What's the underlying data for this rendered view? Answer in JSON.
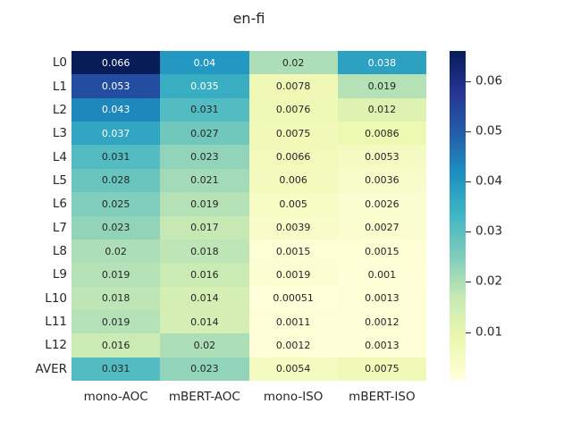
{
  "chart_data": {
    "type": "heatmap",
    "title": "en-fi",
    "rows": [
      "L0",
      "L1",
      "L2",
      "L3",
      "L4",
      "L5",
      "L6",
      "L7",
      "L8",
      "L9",
      "L10",
      "L11",
      "L12",
      "AVER"
    ],
    "columns": [
      "mono-AOC",
      "mBERT-AOC",
      "mono-ISO",
      "mBERT-ISO"
    ],
    "cell_labels": [
      [
        "0.066",
        "0.04",
        "0.02",
        "0.038"
      ],
      [
        "0.053",
        "0.035",
        "0.0078",
        "0.019"
      ],
      [
        "0.043",
        "0.031",
        "0.0076",
        "0.012"
      ],
      [
        "0.037",
        "0.027",
        "0.0075",
        "0.0086"
      ],
      [
        "0.031",
        "0.023",
        "0.0066",
        "0.0053"
      ],
      [
        "0.028",
        "0.021",
        "0.006",
        "0.0036"
      ],
      [
        "0.025",
        "0.019",
        "0.005",
        "0.0026"
      ],
      [
        "0.023",
        "0.017",
        "0.0039",
        "0.0027"
      ],
      [
        "0.02",
        "0.018",
        "0.0015",
        "0.0015"
      ],
      [
        "0.019",
        "0.016",
        "0.0019",
        "0.001"
      ],
      [
        "0.018",
        "0.014",
        "0.00051",
        "0.0013"
      ],
      [
        "0.019",
        "0.014",
        "0.0011",
        "0.0012"
      ],
      [
        "0.016",
        "0.02",
        "0.0012",
        "0.0013"
      ],
      [
        "0.031",
        "0.023",
        "0.0054",
        "0.0075"
      ]
    ],
    "values": [
      [
        0.066,
        0.04,
        0.02,
        0.038
      ],
      [
        0.053,
        0.035,
        0.0078,
        0.019
      ],
      [
        0.043,
        0.031,
        0.0076,
        0.012
      ],
      [
        0.037,
        0.027,
        0.0075,
        0.0086
      ],
      [
        0.031,
        0.023,
        0.0066,
        0.0053
      ],
      [
        0.028,
        0.021,
        0.006,
        0.0036
      ],
      [
        0.025,
        0.019,
        0.005,
        0.0026
      ],
      [
        0.023,
        0.017,
        0.0039,
        0.0027
      ],
      [
        0.02,
        0.018,
        0.0015,
        0.0015
      ],
      [
        0.019,
        0.016,
        0.0019,
        0.001
      ],
      [
        0.018,
        0.014,
        0.00051,
        0.0013
      ],
      [
        0.019,
        0.014,
        0.0011,
        0.0012
      ],
      [
        0.016,
        0.02,
        0.0012,
        0.0013
      ],
      [
        0.031,
        0.023,
        0.0054,
        0.0075
      ]
    ],
    "vmin": 0.00051,
    "vmax": 0.066,
    "colormap": "YlGnBu",
    "colormap_anchors": [
      "#ffffd9",
      "#edf8b1",
      "#c7e9b4",
      "#7fcdbb",
      "#41b6c4",
      "#1d91c0",
      "#225ea8",
      "#253494",
      "#081d58"
    ],
    "colorbar_ticks": [
      {
        "value": 0.06,
        "label": "0.06"
      },
      {
        "value": 0.05,
        "label": "0.05"
      },
      {
        "value": 0.04,
        "label": "0.04"
      },
      {
        "value": 0.03,
        "label": "0.03"
      },
      {
        "value": 0.02,
        "label": "0.02"
      },
      {
        "value": 0.01,
        "label": "0.01"
      }
    ],
    "annotation_text_light": "#ffffff",
    "annotation_text_dark": "#262626",
    "legend_position": "right",
    "grid": false
  }
}
